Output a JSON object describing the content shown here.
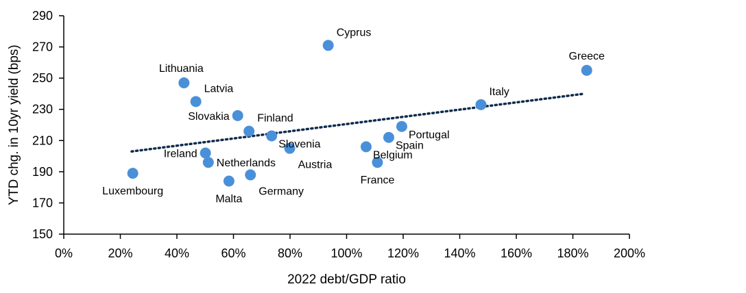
{
  "chart_data": {
    "type": "scatter",
    "title": "",
    "xlabel": "2022 debt/GDP ratio",
    "ylabel": "YTD chg. in 10yr yield (bps)",
    "xlim": [
      0,
      200
    ],
    "ylim": [
      150,
      290
    ],
    "x_ticks": [
      "0%",
      "20%",
      "40%",
      "60%",
      "80%",
      "100%",
      "120%",
      "140%",
      "160%",
      "180%",
      "200%"
    ],
    "y_ticks": [
      "150",
      "170",
      "190",
      "210",
      "230",
      "250",
      "270",
      "290"
    ],
    "grid": false,
    "legend": "none",
    "point_color": "#4a90d9",
    "trendline": {
      "style": "dotted",
      "color": "#0d2b4e",
      "x": [
        24,
        184
      ],
      "y": [
        203,
        240
      ]
    },
    "points": [
      {
        "name": "Cyprus",
        "x": 93.5,
        "y": 271,
        "label_pos": "above-right"
      },
      {
        "name": "Greece",
        "x": 184.9,
        "y": 255,
        "label_pos": "above"
      },
      {
        "name": "Lithuania",
        "x": 42.5,
        "y": 247,
        "label_pos": "above-left"
      },
      {
        "name": "Latvia",
        "x": 46.7,
        "y": 235,
        "label_pos": "above-right"
      },
      {
        "name": "Italy",
        "x": 147.5,
        "y": 233,
        "label_pos": "above-right"
      },
      {
        "name": "Slovakia",
        "x": 61.5,
        "y": 226,
        "label_pos": "left"
      },
      {
        "name": "Portugal",
        "x": 119.5,
        "y": 219,
        "label_pos": "right-below"
      },
      {
        "name": "Finland",
        "x": 65.5,
        "y": 216,
        "label_pos": "above-right"
      },
      {
        "name": "Slovenia",
        "x": 73.5,
        "y": 213,
        "label_pos": "right-below"
      },
      {
        "name": "Spain",
        "x": 114.9,
        "y": 212,
        "label_pos": "right-below"
      },
      {
        "name": "Belgium",
        "x": 106.9,
        "y": 206,
        "label_pos": "right-below"
      },
      {
        "name": "Austria",
        "x": 79.9,
        "y": 205,
        "label_pos": "below-right"
      },
      {
        "name": "Ireland",
        "x": 50.1,
        "y": 202,
        "label_pos": "left"
      },
      {
        "name": "Netherlands",
        "x": 51.1,
        "y": 196,
        "label_pos": "right"
      },
      {
        "name": "France",
        "x": 110.9,
        "y": 196,
        "label_pos": "below"
      },
      {
        "name": "Luxembourg",
        "x": 24.4,
        "y": 189,
        "label_pos": "below"
      },
      {
        "name": "Germany",
        "x": 66.0,
        "y": 188,
        "label_pos": "below-right"
      },
      {
        "name": "Malta",
        "x": 58.4,
        "y": 184,
        "label_pos": "below"
      }
    ]
  }
}
